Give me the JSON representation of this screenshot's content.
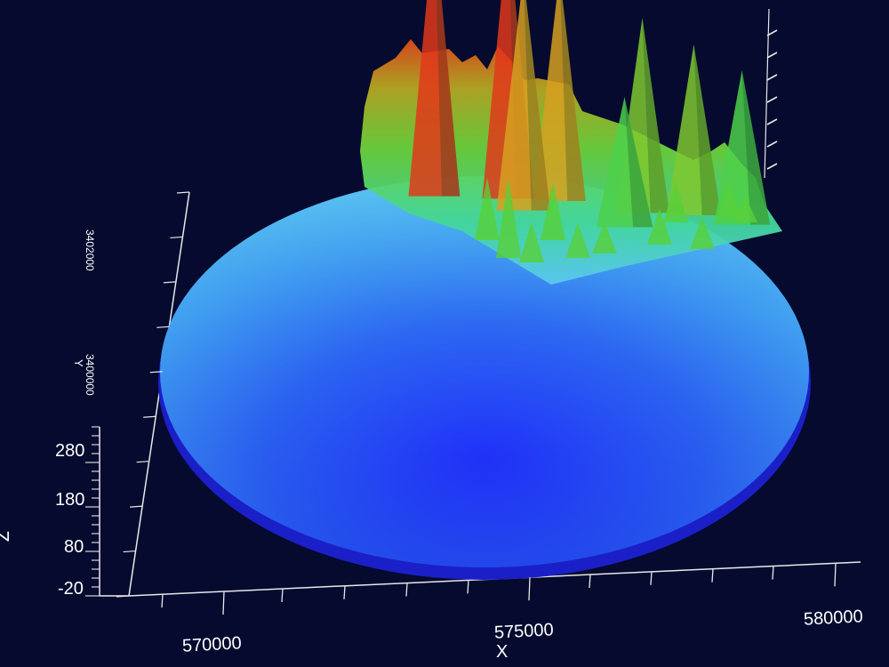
{
  "chart_data": {
    "type": "surface",
    "title": "",
    "colors": {
      "background": "#050a2e",
      "axis": "#e8e8e8",
      "colormap": [
        "#1f1dff",
        "#2f6df2",
        "#5ac8f0",
        "#42d79a",
        "#6ad23c",
        "#e8a51d",
        "#e02a16"
      ]
    },
    "x_axis": {
      "label": "X",
      "ticks": [
        "570000",
        "575000",
        "580000"
      ],
      "range": [
        568000,
        581000
      ]
    },
    "y_axis": {
      "label": "Y",
      "ticks": [
        "3400000",
        "3402000"
      ],
      "range": [
        3398500,
        3403000
      ]
    },
    "z_axis": {
      "label": "Z",
      "ticks": [
        "280",
        "180",
        "80",
        "-20"
      ],
      "range": [
        -20,
        330
      ]
    },
    "surface": {
      "shape": "circular",
      "base_level": -20,
      "peaks": [
        {
          "x": 574000,
          "y": 3402600,
          "z": 320
        },
        {
          "x": 575300,
          "y": 3402500,
          "z": 315
        },
        {
          "x": 576200,
          "y": 3402400,
          "z": 260
        },
        {
          "x": 575500,
          "y": 3402000,
          "z": 270
        },
        {
          "x": 577600,
          "y": 3401900,
          "z": 220
        },
        {
          "x": 578500,
          "y": 3401800,
          "z": 190
        },
        {
          "x": 579300,
          "y": 3401400,
          "z": 170
        },
        {
          "x": 577200,
          "y": 3401300,
          "z": 140
        }
      ]
    },
    "grid": false,
    "legend": "none"
  }
}
